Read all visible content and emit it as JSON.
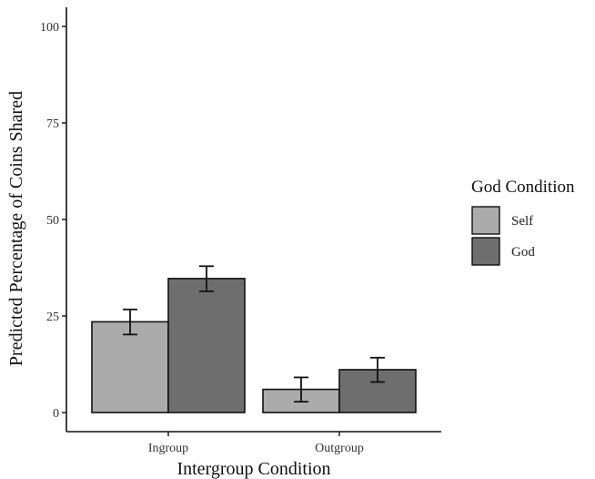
{
  "chart_data": {
    "type": "bar",
    "xlabel": "Intergroup Condition",
    "ylabel": "Predicted Percentage of Coins Shared",
    "categories": [
      "Ingroup",
      "Outgroup"
    ],
    "ylim": [
      0,
      100
    ],
    "yticks": [
      0,
      25,
      50,
      75,
      100
    ],
    "legend": {
      "title": "God Condition",
      "position": "right"
    },
    "grid": false,
    "series": [
      {
        "name": "Self",
        "color": "#ababab",
        "values": [
          23.5,
          6.0
        ],
        "error": [
          [
            20.2,
            26.7
          ],
          [
            2.8,
            9.1
          ]
        ]
      },
      {
        "name": "God",
        "color": "#6e6e6e",
        "values": [
          34.7,
          11.1
        ],
        "error": [
          [
            31.4,
            37.9
          ],
          [
            7.9,
            14.2
          ]
        ]
      }
    ]
  }
}
